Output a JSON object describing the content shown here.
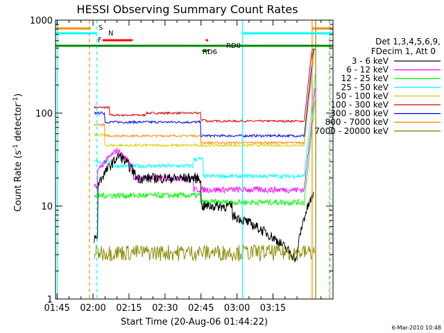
{
  "chart_data": {
    "type": "line",
    "title": "HESSI Observing Summary Count Rates",
    "xlabel": "Start Time (20-Aug-06 01:44:22)",
    "ylabel_main": "Count Rate (s",
    "ylabel_sup1": "-1",
    "ylabel_mid": " detector",
    "ylabel_sup2": "-1",
    "ylabel_end": ")",
    "y_scale": "log",
    "ylim": [
      1,
      1000
    ],
    "xlim_min": [
      104.37,
      220
    ],
    "x_ticks": [
      {
        "min": 105,
        "label": "01:45"
      },
      {
        "min": 120,
        "label": "02:00"
      },
      {
        "min": 135,
        "label": "02:15"
      },
      {
        "min": 150,
        "label": "02:30"
      },
      {
        "min": 165,
        "label": "02:45"
      },
      {
        "min": 180,
        "label": "03:00"
      },
      {
        "min": 195,
        "label": "03:15"
      }
    ],
    "y_ticks": [
      {
        "v": 1,
        "label": "1"
      },
      {
        "v": 10,
        "label": "10"
      },
      {
        "v": 100,
        "label": "100"
      },
      {
        "v": 1000,
        "label": "1000"
      }
    ],
    "legend_header_1": "Det 1,3,4,5,6,9,",
    "legend_header_2": "FDecim 1, Att 0",
    "legend_placement": "right",
    "series": [
      {
        "name": "3 - 6 keV",
        "color": "#000000"
      },
      {
        "name": "6 - 12 keV",
        "color": "#ff00ff"
      },
      {
        "name": "12 - 25 keV",
        "color": "#00ff00"
      },
      {
        "name": "25 - 50 keV",
        "color": "#00ffff"
      },
      {
        "name": "50 - 100 keV",
        "color": "#ddcc00"
      },
      {
        "name": "100 - 300 keV",
        "color": "#dd0000"
      },
      {
        "name": "300 - 800 keV",
        "color": "#0000ff"
      },
      {
        "name": "800 - 7000 keV",
        "color": "#ff8800"
      },
      {
        "name": "7000 - 20000 keV",
        "color": "#888800"
      }
    ],
    "flags": {
      "S": {
        "label": "S",
        "color": "#ff8800"
      },
      "N": {
        "label": "N",
        "color": "#00ffff"
      },
      "F": {
        "label": "F",
        "color": "#ff0000"
      },
      "RD0": {
        "label": "RD0",
        "color": "#ff0000"
      },
      "RD6": {
        "label": "RD6",
        "color": "#008800"
      }
    },
    "timestamp": "6-Mar-2010 10:48"
  }
}
